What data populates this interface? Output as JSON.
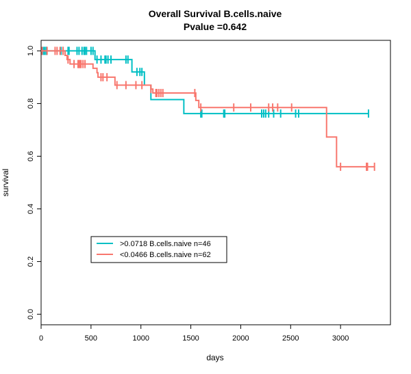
{
  "chart_data": {
    "type": "line",
    "step": true,
    "title": "Overall Survival B.cells.naive",
    "subtitle": "Pvalue =0.642",
    "xlabel": "days",
    "ylabel": "survival",
    "xlim": [
      0,
      3400
    ],
    "ylim": [
      0,
      1
    ],
    "xticks": [
      0,
      500,
      1000,
      1500,
      2000,
      2500,
      3000
    ],
    "yticks": [
      0.0,
      0.2,
      0.4,
      0.6,
      0.8,
      1.0
    ],
    "xtick_labels": [
      "0",
      "500",
      "1000",
      "1500",
      "2000",
      "2500",
      "3000"
    ],
    "ytick_labels": [
      "0.0",
      "0.2",
      "0.4",
      "0.6",
      "0.8",
      "1.0"
    ],
    "grid": false,
    "legend_position": "bottom-left",
    "series": [
      {
        "name": ">0.0718 B.cells.naive n=46",
        "color": "#00bfc4",
        "steps": [
          [
            0,
            1.0
          ],
          [
            540,
            0.967
          ],
          [
            910,
            0.92
          ],
          [
            1035,
            0.87
          ],
          [
            1100,
            0.815
          ],
          [
            1430,
            0.762
          ],
          [
            3280,
            0.762
          ]
        ],
        "censor": [
          20,
          35,
          50,
          55,
          200,
          220,
          270,
          280,
          360,
          380,
          410,
          430,
          440,
          455,
          500,
          520,
          560,
          600,
          640,
          650,
          670,
          700,
          850,
          870,
          960,
          990,
          1010,
          1600,
          1610,
          1830,
          1840,
          2210,
          2230,
          2250,
          2280,
          2330,
          2400,
          2550,
          2580,
          3280
        ]
      },
      {
        "name": "<0.0466 B.cells.naive n=62",
        "color": "#f8766d",
        "steps": [
          [
            0,
            1.0
          ],
          [
            240,
            0.983
          ],
          [
            260,
            0.967
          ],
          [
            290,
            0.95
          ],
          [
            520,
            0.934
          ],
          [
            560,
            0.917
          ],
          [
            570,
            0.9
          ],
          [
            740,
            0.87
          ],
          [
            1100,
            0.855
          ],
          [
            1120,
            0.84
          ],
          [
            1550,
            0.812
          ],
          [
            1580,
            0.785
          ],
          [
            2850,
            0.785
          ],
          [
            2860,
            0.673
          ],
          [
            2960,
            0.56
          ],
          [
            3340,
            0.56
          ]
        ],
        "censor": [
          10,
          60,
          140,
          160,
          190,
          220,
          270,
          330,
          370,
          380,
          390,
          400,
          420,
          440,
          600,
          620,
          660,
          760,
          850,
          950,
          1010,
          1100,
          1150,
          1160,
          1180,
          1200,
          1220,
          1540,
          1600,
          1930,
          2100,
          2280,
          2320,
          2370,
          2510,
          3000,
          3260,
          3270,
          3340
        ]
      }
    ]
  }
}
